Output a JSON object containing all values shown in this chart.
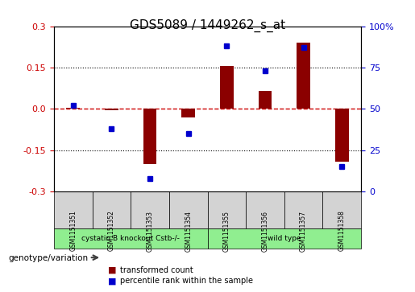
{
  "title": "GDS5089 / 1449262_s_at",
  "samples": [
    "GSM1151351",
    "GSM1151352",
    "GSM1151353",
    "GSM1151354",
    "GSM1151355",
    "GSM1151356",
    "GSM1151357",
    "GSM1151358"
  ],
  "bar_values": [
    0.005,
    -0.005,
    -0.2,
    -0.03,
    0.155,
    0.065,
    0.24,
    -0.19
  ],
  "dot_values": [
    52,
    38,
    8,
    35,
    88,
    73,
    87,
    15
  ],
  "bar_color": "#8B0000",
  "dot_color": "#0000CD",
  "groups": [
    {
      "label": "cystatin B knockout Cstb-/-",
      "start": 0,
      "end": 4,
      "color": "#90EE90"
    },
    {
      "label": "wild type",
      "start": 4,
      "end": 8,
      "color": "#90EE90"
    }
  ],
  "ylim_left": [
    -0.3,
    0.3
  ],
  "ylim_right": [
    0,
    100
  ],
  "yticks_left": [
    -0.3,
    -0.15,
    0.0,
    0.15,
    0.3
  ],
  "yticks_right": [
    0,
    25,
    50,
    75,
    100
  ],
  "zero_line_color": "#CC0000",
  "grid_color": "black",
  "background_color": "#FFFFFF",
  "plot_bg_color": "#FFFFFF",
  "legend_bar_label": "transformed count",
  "legend_dot_label": "percentile rank within the sample",
  "genotype_label": "genotype/variation",
  "arrow_color": "#404040"
}
